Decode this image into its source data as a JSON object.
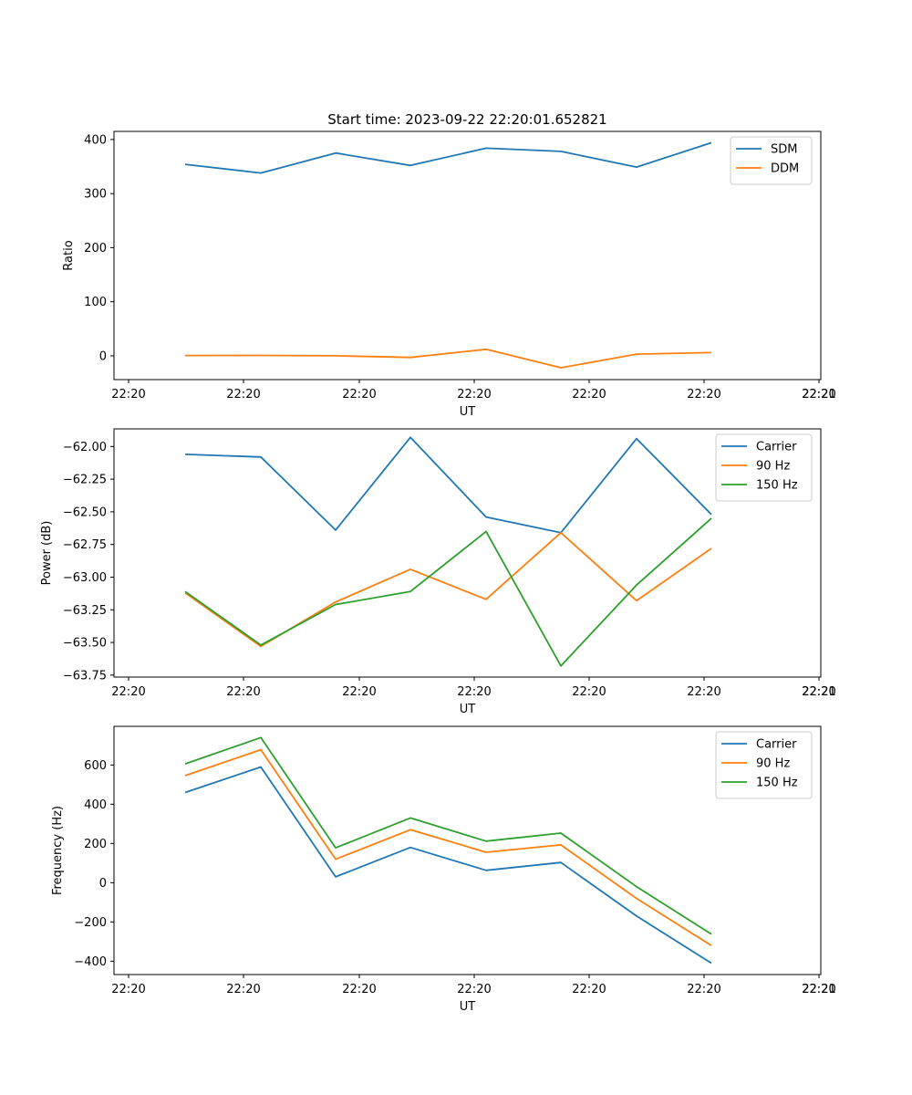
{
  "figure": {
    "title": "Start time: 2023-09-22 22:20:01.652821"
  },
  "chart_data": [
    {
      "type": "line",
      "title": "Start time: 2023-09-22 22:20:01.652821",
      "xlabel": "UT",
      "ylabel": "Ratio",
      "x_tick_labels": [
        "22:20",
        "22:20",
        "22:20",
        "22:20",
        "22:20",
        "22:20",
        "22:20",
        "22:21"
      ],
      "y_ticks": [
        0,
        100,
        200,
        300,
        400
      ],
      "ylim": [
        -44,
        415
      ],
      "legend_position": "top-right",
      "series": [
        {
          "name": "SDM",
          "color": "#1f77b4",
          "values": [
            354,
            338,
            375,
            352,
            384,
            378,
            349,
            394
          ]
        },
        {
          "name": "DDM",
          "color": "#ff7f0e",
          "values": [
            0.5,
            0.8,
            0,
            -3,
            12,
            -22,
            3,
            6
          ]
        }
      ]
    },
    {
      "type": "line",
      "title": "",
      "xlabel": "UT",
      "ylabel": "Power (dB)",
      "x_tick_labels": [
        "22:20",
        "22:20",
        "22:20",
        "22:20",
        "22:20",
        "22:20",
        "22:20",
        "22:21"
      ],
      "y_ticks": [
        -63.75,
        -63.5,
        -63.25,
        -63.0,
        -62.75,
        -62.5,
        -62.25,
        -62.0
      ],
      "y_tick_labels": [
        "−63.75",
        "−63.50",
        "−63.25",
        "−63.00",
        "−62.75",
        "−62.50",
        "−62.25",
        "−62.00"
      ],
      "ylim": [
        -63.765,
        -61.865
      ],
      "legend_position": "top-right",
      "series": [
        {
          "name": "Carrier",
          "color": "#1f77b4",
          "values": [
            -62.06,
            -62.08,
            -62.64,
            -61.93,
            -62.54,
            -62.66,
            -61.94,
            -62.52
          ]
        },
        {
          "name": "90 Hz",
          "color": "#ff7f0e",
          "values": [
            -63.12,
            -63.53,
            -63.19,
            -62.94,
            -63.17,
            -62.66,
            -63.18,
            -62.78
          ]
        },
        {
          "name": "150 Hz",
          "color": "#2ca02c",
          "values": [
            -63.11,
            -63.52,
            -63.21,
            -63.11,
            -62.65,
            -63.68,
            -63.06,
            -62.55
          ]
        }
      ]
    },
    {
      "type": "line",
      "title": "",
      "xlabel": "UT",
      "ylabel": "Frequency (Hz)",
      "x_tick_labels": [
        "22:20",
        "22:20",
        "22:20",
        "22:20",
        "22:20",
        "22:20",
        "22:20",
        "22:21"
      ],
      "y_ticks": [
        -400,
        -200,
        0,
        200,
        400,
        600
      ],
      "y_tick_labels": [
        "−400",
        "−200",
        "0",
        "200",
        "400",
        "600"
      ],
      "ylim": [
        -468,
        797
      ],
      "legend_position": "top-right",
      "series": [
        {
          "name": "Carrier",
          "color": "#1f77b4",
          "values": [
            460,
            590,
            30,
            180,
            63,
            103,
            -170,
            -410
          ]
        },
        {
          "name": "90 Hz",
          "color": "#ff7f0e",
          "values": [
            546,
            678,
            120,
            270,
            155,
            193,
            -80,
            -320
          ]
        },
        {
          "name": "150 Hz",
          "color": "#2ca02c",
          "values": [
            606,
            740,
            178,
            330,
            212,
            253,
            -20,
            -262
          ]
        }
      ]
    }
  ]
}
